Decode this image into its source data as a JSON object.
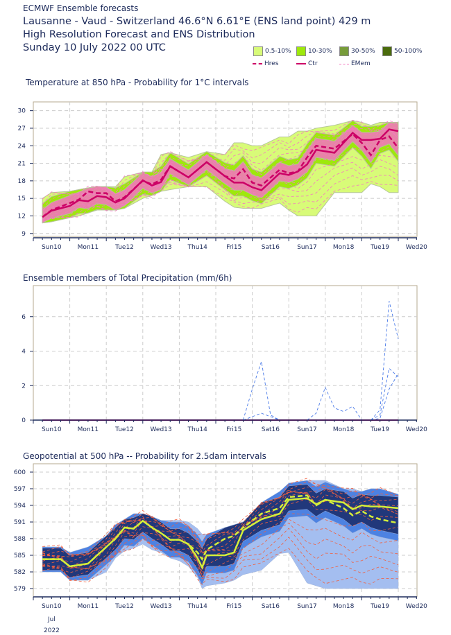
{
  "header": {
    "line0": "ECMWF Ensemble forecasts",
    "line1": "Lausanne - Vaud - Switzerland 46.6°N 6.61°E (ENS land point) 429 m",
    "line2": "High Resolution Forecast and ENS Distribution",
    "line3": "Sunday 10 July 2022 00 UTC"
  },
  "legend": {
    "items": [
      {
        "label": "0.5-10%",
        "color": "#d8fb78"
      },
      {
        "label": "10-30%",
        "color": "#9ee80c"
      },
      {
        "label": "30-50%",
        "color": "#779c3a"
      },
      {
        "label": "50-100%",
        "color": "#4a6b0c"
      }
    ],
    "lines": [
      {
        "label": "Hres",
        "color": "#cc0066",
        "style": "dashed"
      },
      {
        "label": "Ctr",
        "color": "#cc0066",
        "style": "solid"
      },
      {
        "label": "EMem",
        "color": "#f47ac0",
        "style": "thin-dashed"
      }
    ]
  },
  "days": [
    "Sun10",
    "Mon11",
    "Tue12",
    "Wed13",
    "Thu14",
    "Fri15",
    "Sat16",
    "Sun17",
    "Mon18",
    "Tue19",
    "Wed20"
  ],
  "weekend_color": "#ff2020",
  "footer": {
    "month": "Jul",
    "year": "2022"
  },
  "chart_data": [
    {
      "type": "area",
      "title": "Temperature at 850 hPa - Probability for 1°C intervals",
      "xunit": "hours from Sun10 00 UTC",
      "ylim": [
        8.5,
        31.5
      ],
      "yticks": [
        9,
        12,
        15,
        18,
        21,
        24,
        27,
        30
      ],
      "x": [
        6,
        12,
        24,
        30,
        36,
        42,
        48,
        54,
        60,
        72,
        78,
        84,
        90,
        102,
        114,
        126,
        132,
        138,
        144,
        150,
        162,
        168,
        174,
        180,
        186,
        198,
        210,
        216,
        222,
        228,
        234,
        240
      ],
      "ctr": [
        11.8,
        12.9,
        13.7,
        14.7,
        14.5,
        15.4,
        15.2,
        14.3,
        15,
        18.1,
        17.2,
        17.8,
        20.5,
        18.6,
        21.2,
        18.8,
        17.7,
        17.7,
        16.9,
        16.4,
        19.3,
        19,
        19.6,
        20.8,
        23.3,
        22.8,
        26.2,
        25,
        25,
        25.2,
        26.8,
        26.5
      ],
      "hres": [
        11.8,
        13,
        14.2,
        14.8,
        16.2,
        15.9,
        15.9,
        14.5,
        15.2,
        18,
        17.4,
        18.2,
        20.5,
        18.6,
        21.2,
        18.8,
        18.4,
        20,
        17.7,
        17.2,
        19.9,
        19.3,
        19.6,
        22,
        24,
        23.5,
        26,
        24.5,
        22.4,
        25,
        25.6,
        23.6
      ],
      "spread_low": [
        10.8,
        11,
        11.7,
        12,
        12.5,
        13,
        13,
        13,
        13.3,
        15,
        15.5,
        16.2,
        16.5,
        17,
        17,
        14.5,
        13.5,
        13.3,
        13.3,
        13.3,
        14.2,
        13,
        12,
        12,
        12,
        16,
        16,
        16,
        17.5,
        17,
        16,
        16
      ],
      "spread_high": [
        15,
        16,
        16.2,
        16.5,
        16.8,
        17,
        17,
        17,
        18.7,
        19.5,
        19.5,
        22.5,
        22.8,
        22,
        23,
        22.5,
        24.5,
        24.5,
        24,
        24,
        25.5,
        25.5,
        26.5,
        26.5,
        27,
        27.5,
        28.3,
        28,
        27.5,
        28,
        28,
        28
      ]
    },
    {
      "type": "line",
      "title": "Ensemble members of Total Precipitation (mm/6h)",
      "ylabel": "mm/6h",
      "ylim": [
        0,
        7.8
      ],
      "yticks": [
        0,
        2,
        4,
        6
      ],
      "members": [
        {
          "x": [
            138,
            144,
            150,
            156,
            162
          ],
          "y": [
            0,
            1.8,
            3.4,
            0.3,
            0
          ]
        },
        {
          "x": [
            138,
            150,
            162
          ],
          "y": [
            0,
            0.4,
            0
          ]
        },
        {
          "x": [
            180,
            186,
            192,
            198,
            204,
            210,
            216
          ],
          "y": [
            0,
            0.4,
            1.9,
            0.7,
            0.5,
            0.8,
            0
          ]
        },
        {
          "x": [
            222,
            228,
            234,
            240
          ],
          "y": [
            0,
            0.6,
            6.9,
            4.7
          ]
        },
        {
          "x": [
            222,
            228,
            234,
            240
          ],
          "y": [
            0,
            0.3,
            3,
            2.5
          ]
        },
        {
          "x": [
            222,
            228,
            234,
            240
          ],
          "y": [
            0,
            0.1,
            1.8,
            2.7
          ]
        }
      ]
    },
    {
      "type": "area",
      "title": "Geopotential at 500 hPa -- Probability for 2.5dam intervals",
      "ylim": [
        577.5,
        601.5
      ],
      "yticks": [
        579,
        582,
        585,
        588,
        591,
        594,
        597,
        600
      ],
      "x": [
        6,
        18,
        24,
        36,
        48,
        54,
        60,
        66,
        72,
        78,
        84,
        90,
        96,
        102,
        108,
        111,
        114,
        126,
        132,
        138,
        150,
        162,
        168,
        180,
        186,
        192,
        204,
        210,
        216,
        222,
        228,
        240
      ],
      "ctr": [
        584.3,
        584.3,
        583,
        583.5,
        586.5,
        588,
        590,
        589.8,
        591.2,
        590,
        589,
        587.8,
        587.8,
        587,
        584.5,
        582.8,
        585,
        585,
        585.5,
        589.5,
        591.5,
        592.5,
        595,
        595.3,
        594.2,
        595,
        594.5,
        593.3,
        594,
        593.8,
        593.8,
        593.5
      ],
      "hres": [
        584.3,
        584.3,
        583,
        583.5,
        586.5,
        588,
        590,
        589.8,
        591.2,
        590,
        589,
        587.8,
        587.8,
        587,
        585.5,
        584.3,
        586,
        588,
        588.5,
        590,
        592.5,
        593.5,
        595.5,
        595.8,
        594,
        595,
        593.5,
        592.2,
        593,
        592,
        591.5,
        590.8
      ],
      "spread_low": [
        582,
        582,
        580.5,
        580.5,
        582,
        584.5,
        585.8,
        586.3,
        587,
        586,
        585.5,
        584.5,
        584,
        583,
        581,
        579,
        579.5,
        580,
        580.5,
        581.5,
        582.3,
        585.3,
        585.5,
        580,
        579.5,
        579,
        579,
        579,
        579,
        579,
        579,
        579
      ],
      "spread_high": [
        586.5,
        586.5,
        585.5,
        586.5,
        588.5,
        590.5,
        591.5,
        592.5,
        592.5,
        592,
        591.3,
        591.3,
        591.3,
        591,
        589.8,
        588.8,
        588.8,
        590,
        590.5,
        591,
        594.5,
        596.5,
        598,
        598.5,
        598.5,
        598.5,
        597,
        597,
        596.5,
        597,
        597,
        596
      ]
    }
  ]
}
